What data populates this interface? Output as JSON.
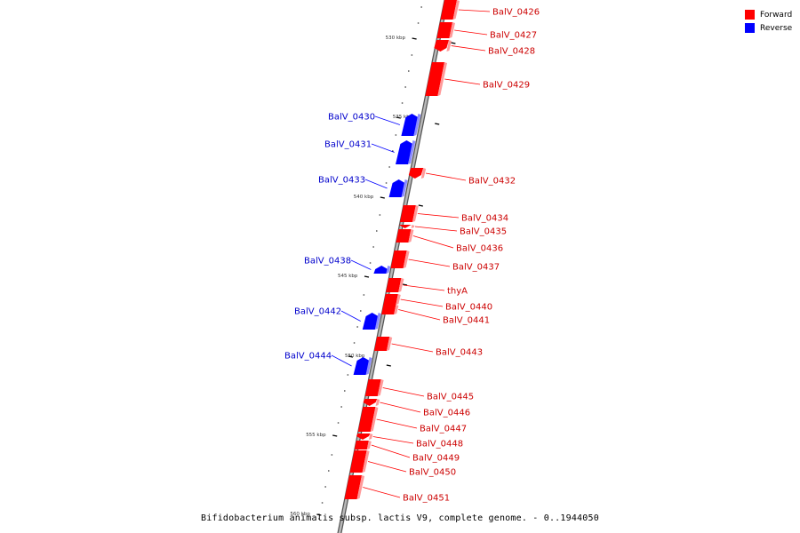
{
  "legend": [
    {
      "label": "Forward",
      "color": "#ff0000"
    },
    {
      "label": "Reverse",
      "color": "#0000ff"
    }
  ],
  "caption": "Bifidobacterium animalis subsp. lactis V9, complete genome. - 0..1944050",
  "scale_labels": [
    "530 kbp",
    "535 kbp",
    "540 kbp",
    "545 kbp",
    "550 kbp",
    "555 kbp",
    "560 kbp"
  ],
  "genes": [
    {
      "name": "BalV_0426",
      "strand": "forward"
    },
    {
      "name": "BalV_0427",
      "strand": "forward"
    },
    {
      "name": "BalV_0428",
      "strand": "forward"
    },
    {
      "name": "BalV_0429",
      "strand": "forward"
    },
    {
      "name": "BalV_0430",
      "strand": "reverse"
    },
    {
      "name": "BalV_0431",
      "strand": "reverse"
    },
    {
      "name": "BalV_0432",
      "strand": "forward"
    },
    {
      "name": "BalV_0433",
      "strand": "reverse"
    },
    {
      "name": "BalV_0434",
      "strand": "forward"
    },
    {
      "name": "BalV_0435",
      "strand": "forward"
    },
    {
      "name": "BalV_0436",
      "strand": "forward"
    },
    {
      "name": "BalV_0437",
      "strand": "forward"
    },
    {
      "name": "BalV_0438",
      "strand": "reverse"
    },
    {
      "name": "thyA",
      "strand": "forward"
    },
    {
      "name": "BalV_0440",
      "strand": "forward"
    },
    {
      "name": "BalV_0441",
      "strand": "forward"
    },
    {
      "name": "BalV_0442",
      "strand": "reverse"
    },
    {
      "name": "BalV_0443",
      "strand": "forward"
    },
    {
      "name": "BalV_0444",
      "strand": "reverse"
    },
    {
      "name": "BalV_0445",
      "strand": "forward"
    },
    {
      "name": "BalV_0446",
      "strand": "forward"
    },
    {
      "name": "BalV_0447",
      "strand": "forward"
    },
    {
      "name": "BalV_0448",
      "strand": "forward"
    },
    {
      "name": "BalV_0449",
      "strand": "forward"
    },
    {
      "name": "BalV_0450",
      "strand": "forward"
    },
    {
      "name": "BalV_0451",
      "strand": "forward"
    }
  ]
}
